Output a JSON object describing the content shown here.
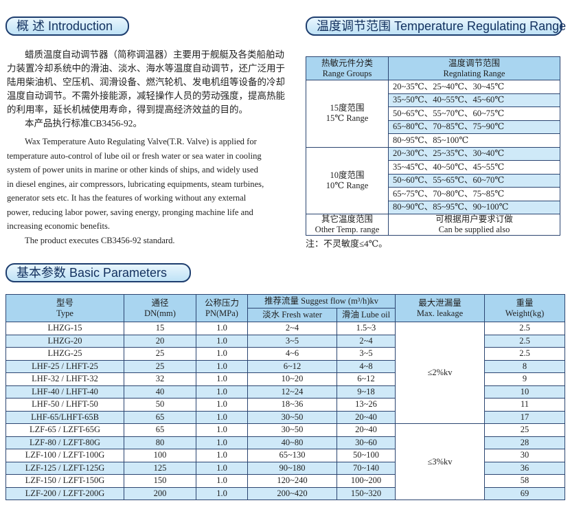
{
  "intro": {
    "header": "概 述 Introduction",
    "zh_lines": [
      "蜡质温度自动调节器（简称调温器）主要用于舰艇及各类船舶动",
      "力装置冷却系统中的滑油、淡水、海水等温度自动调节，还广泛用于",
      "陆用柴油机、空压机、润滑设备、燃汽轮机、发电机组等设备的冷却",
      "温度自动调节。不需外接能源，减轻操作人员的劳动强度，提高热能",
      "的利用率，延长机械使用寿命，得到提高经济效益的目的。",
      "本产品执行标准CB3456-92。"
    ],
    "en_lines": [
      "Wax Temperature Auto Regulating Valve(T.R. Valve) is applied for",
      "temperature auto-control of lube oil or fresh water or sea water in cooling",
      "system of power units in marine or other kinds of ships, and widely used",
      "in diesel engines, air compressors, lubricating equipments, steam turbines,",
      "generator sets etc. It has the features of working without any external",
      "power, reducing labor power, saving energy, pronging machine life and",
      "increasing economic benefits.",
      "The product executes CB3456-92 standard."
    ]
  },
  "range_table": {
    "header": "温度调节范围 Temperature Regulating Range",
    "columns": [
      [
        "热敏元件分类",
        "Range Groups"
      ],
      [
        "温度调节范围",
        "Regnlating Range"
      ]
    ],
    "groups": [
      {
        "label": [
          "15度范围",
          "15℃ Range"
        ],
        "ranges": [
          "20~35℃、25~40℃、30~45℃",
          "35~50℃、40~55℃、45~60℃",
          "50~65℃、55~70℃、60~75℃",
          "65~80℃、70~85℃、75~90℃",
          "80~95℃、85~100℃"
        ]
      },
      {
        "label": [
          "10度范围",
          "10℃ Range"
        ],
        "ranges": [
          "20~30℃、25~35℃、30~40℃",
          "35~45℃、40~50℃、45~55℃",
          "50~60℃、55~65℃、60~70℃",
          "65~75℃、70~80℃、75~85℃",
          "80~90℃、85~95℃、90~100℃"
        ]
      }
    ],
    "other": {
      "label": [
        "其它温度范围",
        "Other Temp. range"
      ],
      "value": [
        "可根据用户要求订做",
        "Can be supplied also"
      ]
    },
    "note": "注：不灵敏度≤4℃。"
  },
  "basic_table": {
    "header": "基本参数 Basic Parameters",
    "columns": {
      "type": [
        "型号",
        "Type"
      ],
      "dn": [
        "通径",
        "DN(mm)"
      ],
      "pn": [
        "公称压力",
        "PN(MPa)"
      ],
      "flow": "推荐流量  Suggest flow (m³/h)kv",
      "fresh": "淡水 Fresh water",
      "lube": "滑油 Lube oil",
      "leakage": [
        "最大泄漏量",
        "Max. leakage"
      ],
      "weight": [
        "重量",
        "Weight(kg)"
      ]
    },
    "groups": [
      {
        "leakage": "≤2%kv",
        "rows": [
          [
            "LHZG-15",
            "15",
            "1.0",
            "2~4",
            "1.5~3",
            "2.5"
          ],
          [
            "LHZG-20",
            "20",
            "1.0",
            "3~5",
            "2~4",
            "2.5"
          ],
          [
            "LHZG-25",
            "25",
            "1.0",
            "4~6",
            "3~5",
            "2.5"
          ],
          [
            "LHF-25 / LHFT-25",
            "25",
            "1.0",
            "6~12",
            "4~8",
            "8"
          ],
          [
            "LHF-32 / LHFT-32",
            "32",
            "1.0",
            "10~20",
            "6~12",
            "9"
          ],
          [
            "LHF-40 / LHFT-40",
            "40",
            "1.0",
            "12~24",
            "9~18",
            "10"
          ],
          [
            "LHF-50 / LHFT-50",
            "50",
            "1.0",
            "18~36",
            "13~26",
            "11"
          ],
          [
            "LHF-65/LHFT-65B",
            "65",
            "1.0",
            "30~50",
            "20~40",
            "17"
          ]
        ]
      },
      {
        "leakage": "≤3%kv",
        "rows": [
          [
            "LZF-65 / LZFT-65G",
            "65",
            "1.0",
            "30~50",
            "20~40",
            "25"
          ],
          [
            "LZF-80 / LZFT-80G",
            "80",
            "1.0",
            "40~80",
            "30~60",
            "28"
          ],
          [
            "LZF-100 / LZFT-100G",
            "100",
            "1.0",
            "65~130",
            "50~100",
            "30"
          ],
          [
            "LZF-125 / LZFT-125G",
            "125",
            "1.0",
            "90~180",
            "70~140",
            "36"
          ],
          [
            "LZF-150 / LZFT-150G",
            "150",
            "1.0",
            "120~240",
            "100~200",
            "58"
          ],
          [
            "LZF-200 / LZFT-200G",
            "200",
            "1.0",
            "200~420",
            "150~320",
            "69"
          ]
        ]
      }
    ]
  }
}
